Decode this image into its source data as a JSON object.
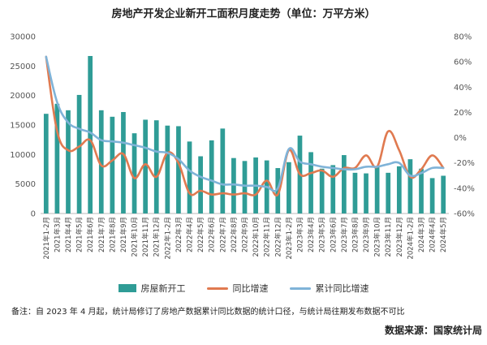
{
  "page": {
    "title": "房地产开发企业新开工面积月度走势（单位：万平方米）",
    "note": "备注：自 2023 年 4 月起，统计局修订了房地产数据累计同比数据的统计口径，与统计局往期发布数据不可比",
    "source": "数据来源：国家统计局"
  },
  "legend": {
    "bar_label": "房屋新开工",
    "line1_label": "同比增速",
    "line2_label": "累计同比增速"
  },
  "colors": {
    "bar": "#2f9c96",
    "line_yoy": "#e07a50",
    "line_cum": "#7fb3d8"
  },
  "chart_data": {
    "type": "bar",
    "title": "房地产开发企业新开工面积月度走势（单位：万平方米）",
    "categories": [
      "2021年1-2月",
      "2021年3月",
      "2021年4月",
      "2021年5月",
      "2021年6月",
      "2021年7月",
      "2021年8月",
      "2021年9月",
      "2021年10月",
      "2021年11月",
      "2021年12月",
      "2022年1-2月",
      "2022年3月",
      "2022年4月",
      "2022年5月",
      "2022年6月",
      "2022年7月",
      "2022年8月",
      "2022年9月",
      "2022年10月",
      "2022年11月",
      "2022年12月",
      "2023年1-2月",
      "2023年3月",
      "2023年4月",
      "2023年5月",
      "2023年6月",
      "2023年7月",
      "2023年8月",
      "2023年9月",
      "2023年10月",
      "2023年11月",
      "2023年12月",
      "2024年1-2月",
      "2024年3月",
      "2024年4月",
      "2024年5月"
    ],
    "left_axis": {
      "ylim": [
        0,
        30000
      ],
      "ticks": [
        "0",
        "5000",
        "10000",
        "15000",
        "20000",
        "25000",
        "30000"
      ]
    },
    "right_axis": {
      "ylim": [
        -60,
        80
      ],
      "ticks": [
        "-60%",
        "-40%",
        "-20%",
        "0%",
        "20%",
        "40%",
        "60%",
        "80%"
      ]
    },
    "series": [
      {
        "name": "房屋新开工",
        "type": "bar",
        "axis": "left",
        "values": [
          16900,
          18600,
          17500,
          20100,
          26700,
          17500,
          16400,
          17200,
          13600,
          15900,
          15800,
          14900,
          14800,
          12200,
          9700,
          12400,
          14400,
          9400,
          8900,
          9500,
          9000,
          7700,
          8700,
          13200,
          10400,
          7600,
          8200,
          9900,
          6900,
          6800,
          8000,
          6900,
          8000,
          9200,
          7600,
          6000,
          6400
        ]
      },
      {
        "name": "同比增速",
        "type": "line",
        "axis": "right",
        "values": [
          64,
          5,
          -10,
          -7,
          -2,
          -22,
          -18,
          -13,
          -32,
          -21,
          -31,
          -12,
          -20,
          -44,
          -42,
          -45,
          -44,
          -45,
          -44,
          -45,
          -34,
          -45,
          -10,
          -29,
          -28,
          -26,
          -31,
          -24,
          -24,
          -14,
          -23,
          5,
          -10,
          -31,
          -25,
          -14,
          -24
        ]
      },
      {
        "name": "累计同比增速",
        "type": "line",
        "axis": "right",
        "values": [
          64,
          28,
          12,
          7,
          4,
          -2,
          -3,
          -4,
          -6,
          -8,
          -11,
          -12,
          -17,
          -26,
          -31,
          -34,
          -37,
          -37,
          -38,
          -38,
          -39,
          -40,
          -9,
          -19,
          -21,
          -23,
          -24,
          -25,
          -25,
          -23,
          -23,
          -21,
          -20,
          -30,
          -28,
          -24,
          -24
        ]
      }
    ],
    "grid": false,
    "legend_position": "bottom"
  }
}
